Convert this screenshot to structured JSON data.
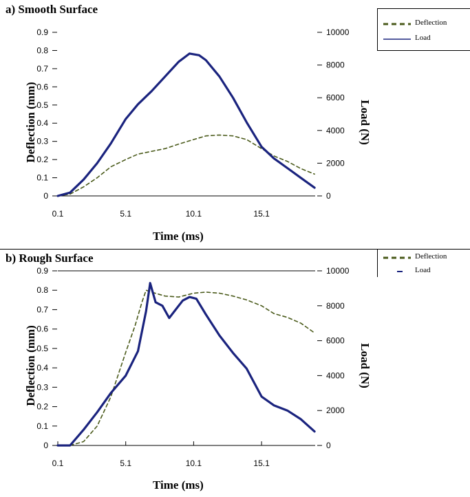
{
  "chart_data": [
    {
      "panel": "a",
      "type": "line",
      "title": "a) Smooth Surface",
      "xlabel": "Time (ms)",
      "ylabel": "Deflection (mm)",
      "y2label": "Load (N)",
      "xticks": [
        "0.1",
        "5.1",
        "10.1",
        "15.1"
      ],
      "xlim": [
        0.1,
        19.3
      ],
      "yticks": [
        "0",
        "0.1",
        "0.2",
        "0.3",
        "0.4",
        "0.5",
        "0.6",
        "0.7",
        "0.8",
        "0.9"
      ],
      "ylim": [
        0,
        0.9
      ],
      "y2ticks": [
        "0",
        "2000",
        "4000",
        "6000",
        "8000",
        "10000"
      ],
      "y2lim": [
        0,
        10000
      ],
      "legend_position": "top-right",
      "series": [
        {
          "name": "Deflection",
          "axis": "left",
          "style": "dashed",
          "color": "#4a5a1a",
          "x": [
            0.1,
            1.0,
            2.0,
            3.0,
            4.0,
            5.1,
            6.0,
            7.0,
            8.0,
            9.0,
            10.1,
            11.0,
            12.0,
            13.0,
            14.0,
            15.1,
            16.0,
            17.0,
            18.0,
            19.0
          ],
          "y": [
            0.0,
            0.01,
            0.05,
            0.1,
            0.16,
            0.2,
            0.23,
            0.245,
            0.26,
            0.285,
            0.31,
            0.33,
            0.335,
            0.33,
            0.31,
            0.26,
            0.22,
            0.19,
            0.15,
            0.12
          ]
        },
        {
          "name": "Load",
          "axis": "right",
          "style": "solid",
          "color": "#1a237e",
          "x": [
            0.1,
            1.0,
            2.0,
            3.0,
            4.0,
            5.1,
            6.0,
            7.0,
            8.0,
            9.0,
            9.8,
            10.5,
            11.0,
            12.0,
            13.0,
            14.0,
            15.1,
            16.0,
            17.0,
            18.0,
            19.0
          ],
          "y": [
            0,
            200,
            1000,
            2000,
            3200,
            4700,
            5600,
            6400,
            7300,
            8200,
            8700,
            8600,
            8300,
            7300,
            6000,
            4500,
            3000,
            2300,
            1700,
            1100,
            500
          ]
        }
      ]
    },
    {
      "panel": "b",
      "type": "line",
      "title": "b) Rough Surface",
      "xlabel": "Time (ms)",
      "ylabel": "Deflection (mm)",
      "y2label": "Load (N)",
      "xticks": [
        "0.1",
        "5.1",
        "10.1",
        "15.1"
      ],
      "xlim": [
        0.1,
        19.3
      ],
      "yticks": [
        "0",
        "0.1",
        "0.2",
        "0.3",
        "0.4",
        "0.5",
        "0.6",
        "0.7",
        "0.8",
        "0.9"
      ],
      "ylim": [
        0,
        0.9
      ],
      "y2ticks": [
        "0",
        "2000",
        "4000",
        "6000",
        "8000",
        "10000"
      ],
      "y2lim": [
        0,
        10000
      ],
      "legend_position": "top-right",
      "series": [
        {
          "name": "Deflection",
          "axis": "left",
          "style": "dashed",
          "color": "#4a5a1a",
          "x": [
            0.1,
            1.0,
            2.0,
            3.0,
            4.0,
            5.1,
            5.8,
            6.3,
            6.6,
            7.0,
            8.0,
            9.0,
            10.1,
            11.0,
            12.0,
            13.0,
            14.0,
            15.1,
            16.0,
            17.0,
            18.0,
            19.0
          ],
          "y": [
            0.0,
            0.0,
            0.02,
            0.1,
            0.25,
            0.48,
            0.62,
            0.74,
            0.8,
            0.79,
            0.77,
            0.765,
            0.785,
            0.79,
            0.785,
            0.77,
            0.75,
            0.72,
            0.68,
            0.66,
            0.63,
            0.58
          ]
        },
        {
          "name": "Load",
          "axis": "right",
          "style": "solid",
          "color": "#1a237e",
          "x": [
            0.1,
            1.0,
            2.0,
            3.0,
            4.0,
            5.1,
            6.0,
            6.6,
            6.9,
            7.3,
            7.8,
            8.3,
            8.8,
            9.3,
            9.8,
            10.3,
            11.0,
            12.0,
            13.0,
            14.0,
            15.1,
            16.0,
            17.0,
            18.0,
            19.0
          ],
          "y": [
            0,
            0,
            900,
            1900,
            3000,
            4000,
            5400,
            7700,
            9300,
            8200,
            8000,
            7300,
            7800,
            8300,
            8500,
            8400,
            7500,
            6300,
            5300,
            4400,
            2800,
            2300,
            2000,
            1500,
            800
          ]
        }
      ]
    }
  ]
}
